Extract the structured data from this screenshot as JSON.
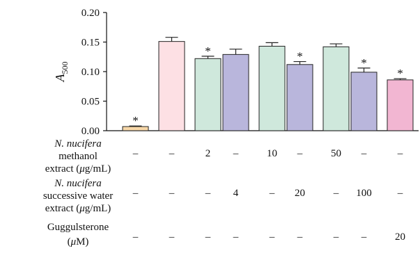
{
  "chart_data": {
    "type": "bar",
    "ylabel": "A",
    "ylabel_sub": "500",
    "ylim": [
      0,
      0.2
    ],
    "yticks": [
      "0.00",
      "0.05",
      "0.10",
      "0.15",
      "0.20"
    ],
    "values": [
      0.007,
      0.151,
      0.122,
      0.129,
      0.143,
      0.112,
      0.142,
      0.099,
      0.086
    ],
    "errors": [
      0.001,
      0.007,
      0.004,
      0.009,
      0.006,
      0.005,
      0.005,
      0.007,
      0.002
    ],
    "significant": [
      true,
      false,
      true,
      false,
      false,
      true,
      false,
      true,
      true
    ],
    "star": "*",
    "colors": [
      "#f7d7a8",
      "#fde0e4",
      "#cfe8dc",
      "#b9b6dc",
      "#cfe8dc",
      "#b9b6dc",
      "#cfe8dc",
      "#b9b6dc",
      "#f2b6d2"
    ],
    "table": [
      {
        "label_lines": [
          {
            "italic": "N. nucifera",
            "plain": ""
          },
          {
            "italic": "",
            "plain": "methanol"
          },
          {
            "italic": "",
            "plain": "extract (",
            "italic2": "μ",
            "plain2": "g/mL)"
          }
        ],
        "cells": [
          "–",
          "–",
          "2",
          "–",
          "10",
          "–",
          "50",
          "–",
          "–"
        ]
      },
      {
        "label_lines": [
          {
            "italic": "N. nucifera",
            "plain": ""
          },
          {
            "italic": "",
            "plain": "successive water"
          },
          {
            "italic": "",
            "plain": "extract (",
            "italic2": "μ",
            "plain2": "g/mL)"
          }
        ],
        "cells": [
          "–",
          "–",
          "–",
          "4",
          "–",
          "20",
          "–",
          "100",
          "–"
        ]
      },
      {
        "label_lines": [
          {
            "italic": "",
            "plain": "Guggulsterone"
          },
          {
            "italic": "",
            "plain": "(",
            "italic2": "μ",
            "plain2": "M)"
          }
        ],
        "cells": [
          "–",
          "–",
          "–",
          "–",
          "–",
          "–",
          "–",
          "–",
          "20"
        ]
      }
    ]
  }
}
